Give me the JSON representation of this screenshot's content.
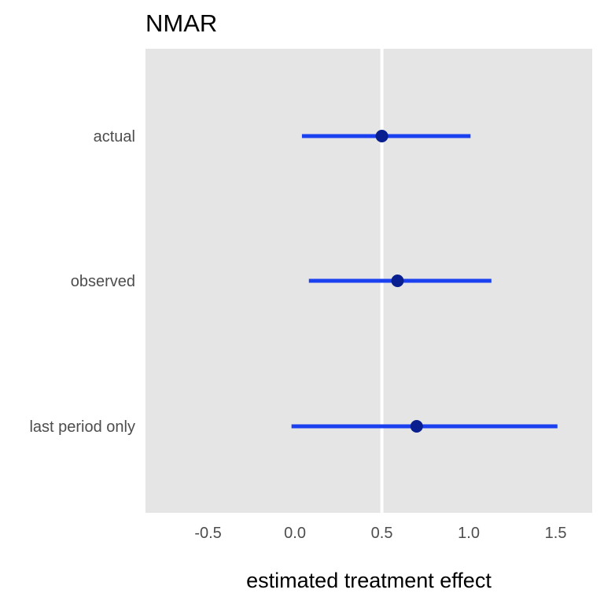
{
  "chart_data": {
    "type": "pointrange",
    "title": "NMAR",
    "xlabel": "estimated treatment effect",
    "ylabel": "",
    "xlim": [
      -0.86,
      1.71
    ],
    "x_ticks": [
      -0.5,
      0.0,
      0.5,
      1.0,
      1.5
    ],
    "x_tick_labels": [
      "-0.5",
      "0.0",
      "0.5",
      "1.0",
      "1.5"
    ],
    "reference_line_x": 0.5,
    "grid": false,
    "categories": [
      "actual",
      "observed",
      "last period only"
    ],
    "estimates": [
      0.5,
      0.59,
      0.7
    ],
    "ci_low": [
      0.04,
      0.08,
      -0.02
    ],
    "ci_high": [
      1.01,
      1.13,
      1.51
    ],
    "colors": {
      "panel_background": "#e5e5e5",
      "reference_line": "#ffffff",
      "interval": "#1a40f0",
      "point": "#0a1f8f",
      "tick_label": "#4d4d4d",
      "axis_title": "#000000"
    }
  }
}
